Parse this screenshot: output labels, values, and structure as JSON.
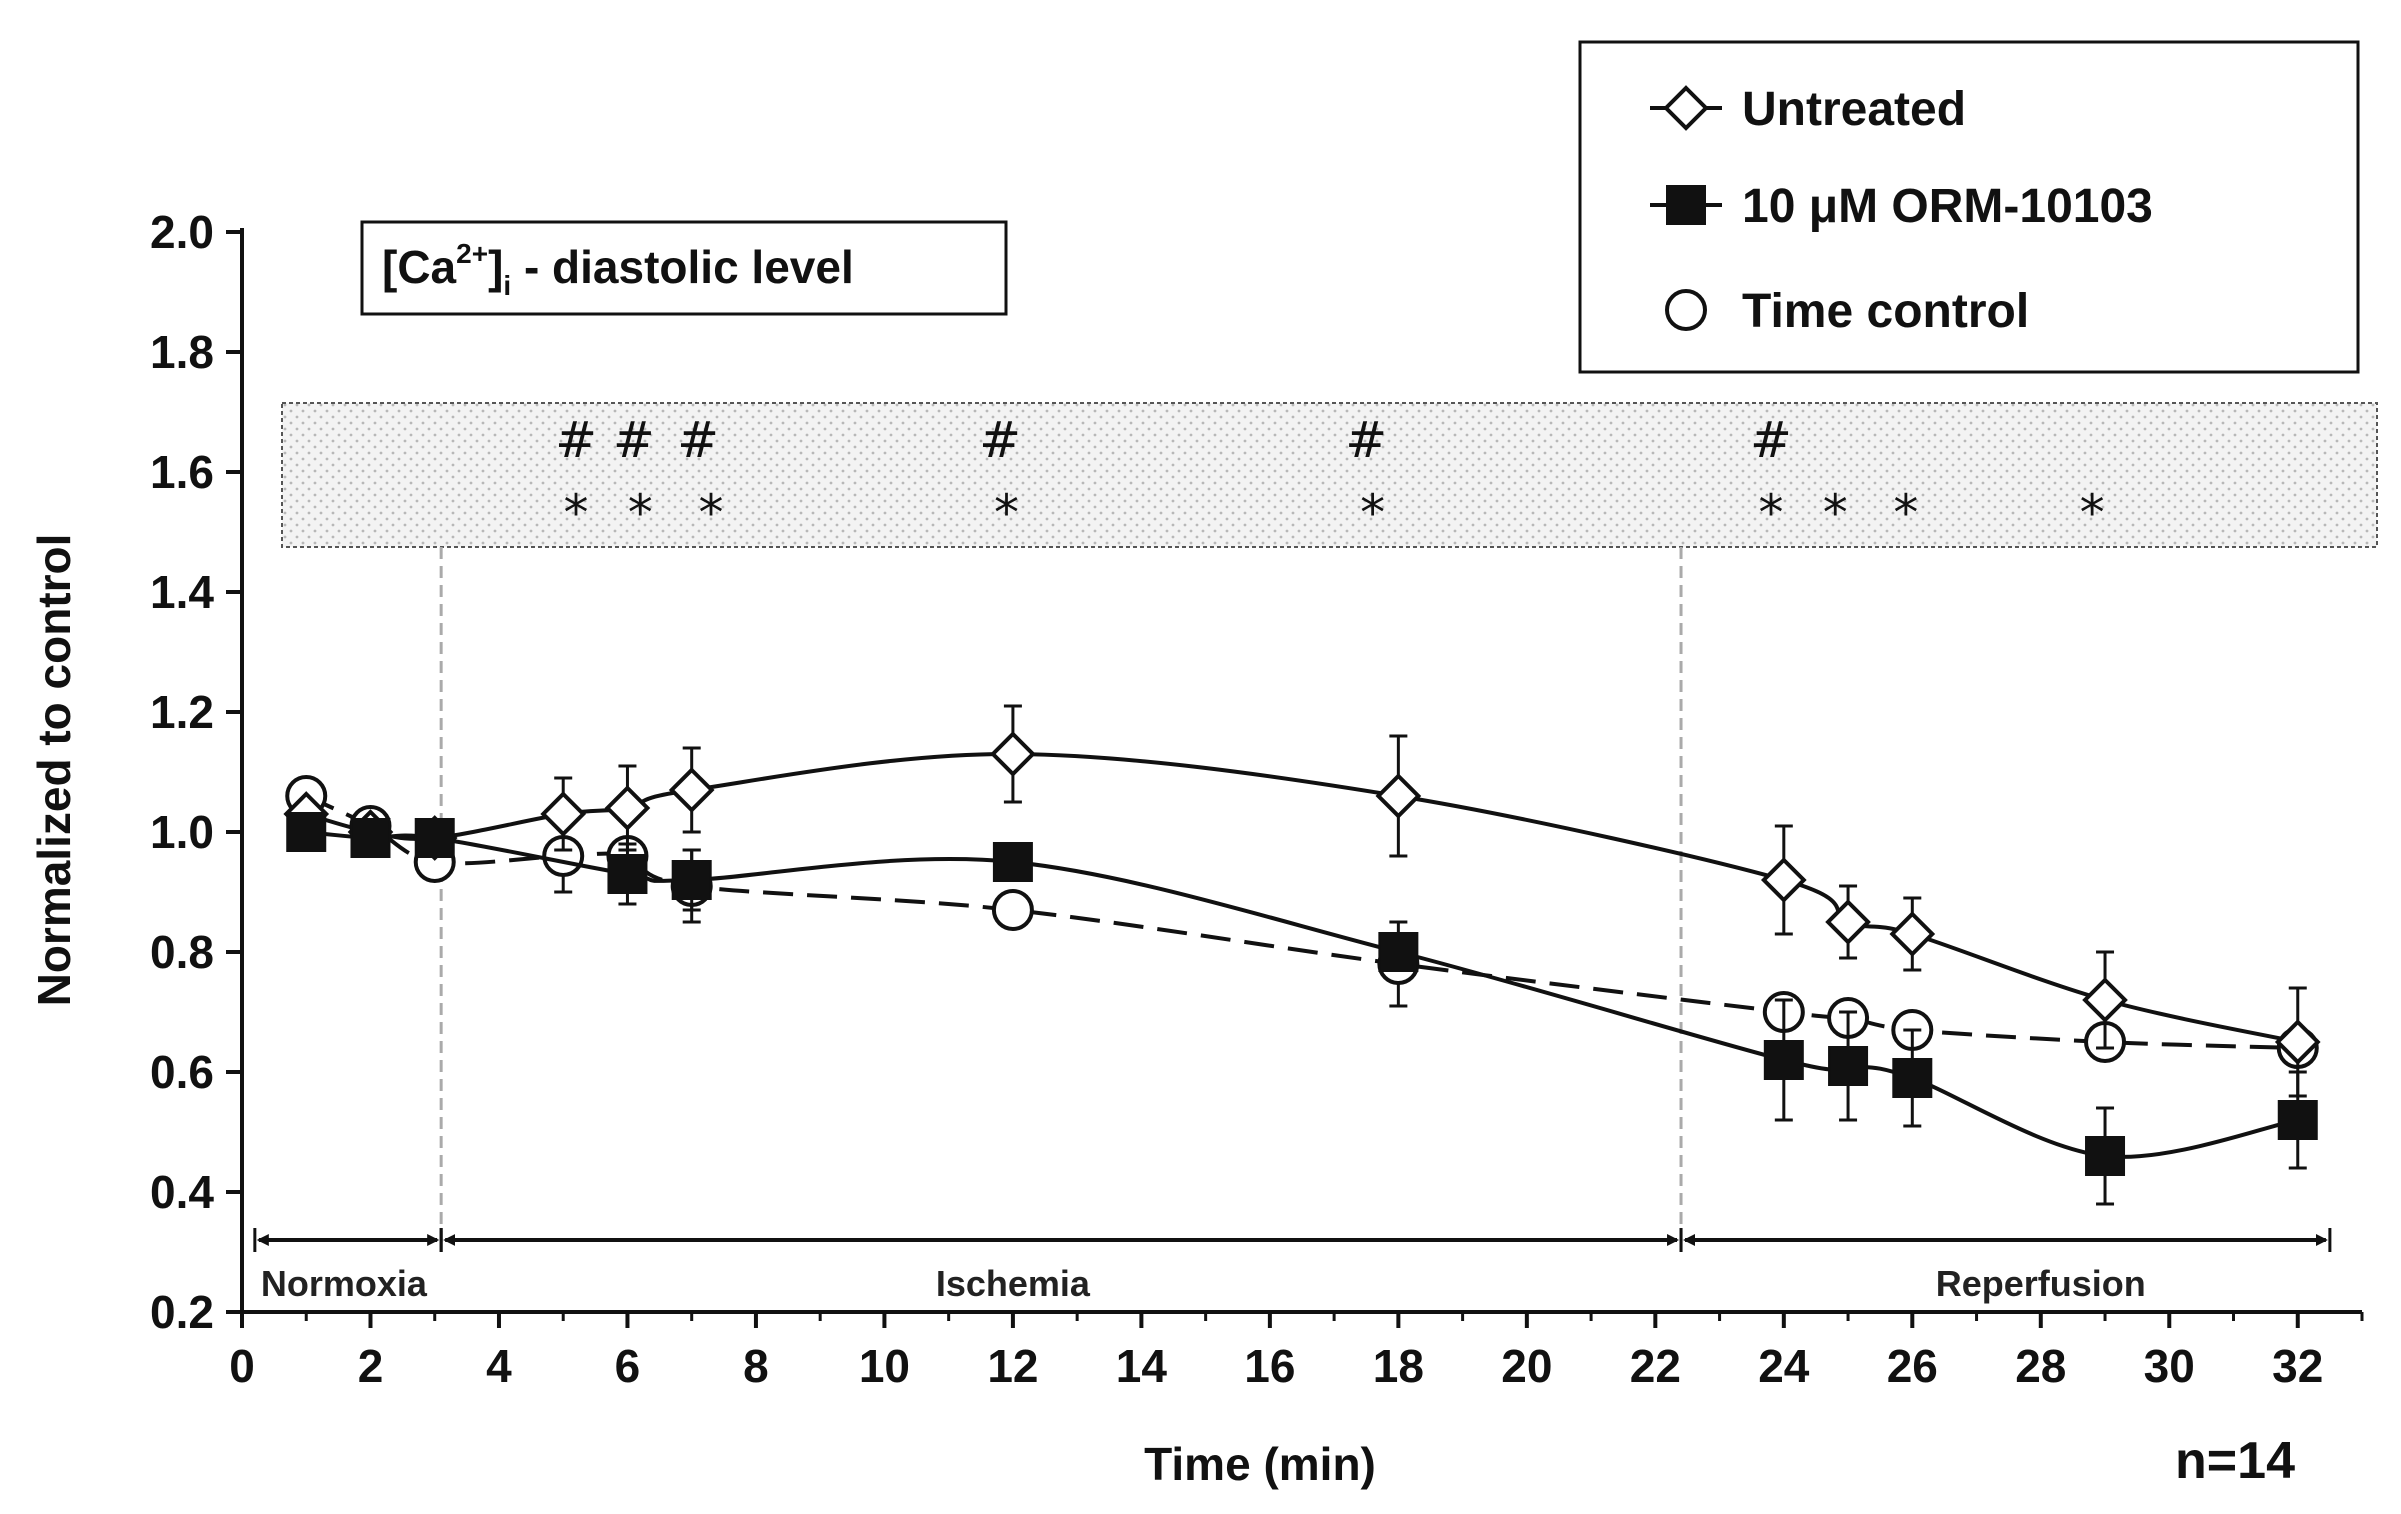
{
  "chart_data": {
    "type": "line",
    "xlabel": "Time (min)",
    "ylabel": "Normalized to control",
    "xlim": [
      0,
      33
    ],
    "ylim": [
      0.2,
      2.0
    ],
    "xticks": [
      0,
      2,
      4,
      6,
      8,
      10,
      12,
      14,
      16,
      18,
      20,
      22,
      24,
      26,
      28,
      30,
      32
    ],
    "yticks": [
      0.2,
      0.4,
      0.6,
      0.8,
      1.0,
      1.2,
      1.4,
      1.6,
      1.8,
      2.0
    ],
    "ytick_labels": [
      "0.2",
      "0.4",
      "0.6",
      "0.8",
      "1.0",
      "1.2",
      "1.4",
      "1.6",
      "1.8",
      "2.0"
    ],
    "grid": false,
    "legend_position": "top-right",
    "inset_label": {
      "prefix": "[Ca",
      "superscript": "2+",
      "bracket": "]",
      "subscript": "i",
      "suffix": " - diastolic level"
    },
    "n_label": "n=14",
    "phases": [
      {
        "label": "Normoxia",
        "start": 0.2,
        "end": 3.1
      },
      {
        "label": "Ischemia",
        "start": 3.1,
        "end": 22.4
      },
      {
        "label": "Reperfusion",
        "start": 22.4,
        "end": 32.5
      }
    ],
    "phase_dividers": [
      3.1,
      22.4
    ],
    "significance": {
      "hash_symbol": "#",
      "star_symbol": "*",
      "hash_x": [
        5.2,
        6.1,
        7.1,
        11.8,
        17.5,
        23.8
      ],
      "star_x": [
        5.2,
        6.2,
        7.3,
        11.9,
        17.6,
        23.8,
        24.8,
        25.9,
        28.8
      ]
    },
    "series": [
      {
        "name": "Untreated",
        "marker": "diamond-open",
        "line": "solid",
        "x": [
          1,
          2,
          3,
          5,
          6,
          7,
          12,
          18,
          24,
          25,
          26,
          29,
          32
        ],
        "y": [
          1.03,
          1.0,
          0.99,
          1.03,
          1.04,
          1.07,
          1.13,
          1.06,
          0.92,
          0.85,
          0.83,
          0.72,
          0.65
        ],
        "err": [
          0.0,
          0.0,
          0.0,
          0.06,
          0.07,
          0.07,
          0.08,
          0.1,
          0.09,
          0.06,
          0.06,
          0.08,
          0.09
        ]
      },
      {
        "name": "10 μM ORM-10103",
        "marker": "square-filled",
        "line": "solid",
        "x": [
          1,
          2,
          3,
          6,
          7,
          12,
          18,
          24,
          25,
          26,
          29,
          32
        ],
        "y": [
          1.0,
          0.99,
          0.99,
          0.93,
          0.92,
          0.95,
          0.8,
          0.62,
          0.61,
          0.59,
          0.46,
          0.52
        ],
        "err": [
          0.0,
          0.0,
          0.0,
          0.05,
          0.05,
          0.0,
          0.0,
          0.1,
          0.09,
          0.08,
          0.08,
          0.08
        ]
      },
      {
        "name": "Time control",
        "marker": "circle-open",
        "line": "dashed",
        "x": [
          1,
          2,
          3,
          5,
          6,
          7,
          12,
          18,
          24,
          25,
          26,
          29,
          32
        ],
        "y": [
          1.06,
          1.01,
          0.95,
          0.96,
          0.96,
          0.91,
          0.87,
          0.78,
          0.7,
          0.69,
          0.67,
          0.65,
          0.64
        ],
        "err": [
          0.0,
          0.0,
          0.0,
          0.06,
          0.0,
          0.06,
          0.0,
          0.07,
          0.0,
          0.0,
          0.0,
          0.0,
          0.0
        ]
      }
    ]
  }
}
